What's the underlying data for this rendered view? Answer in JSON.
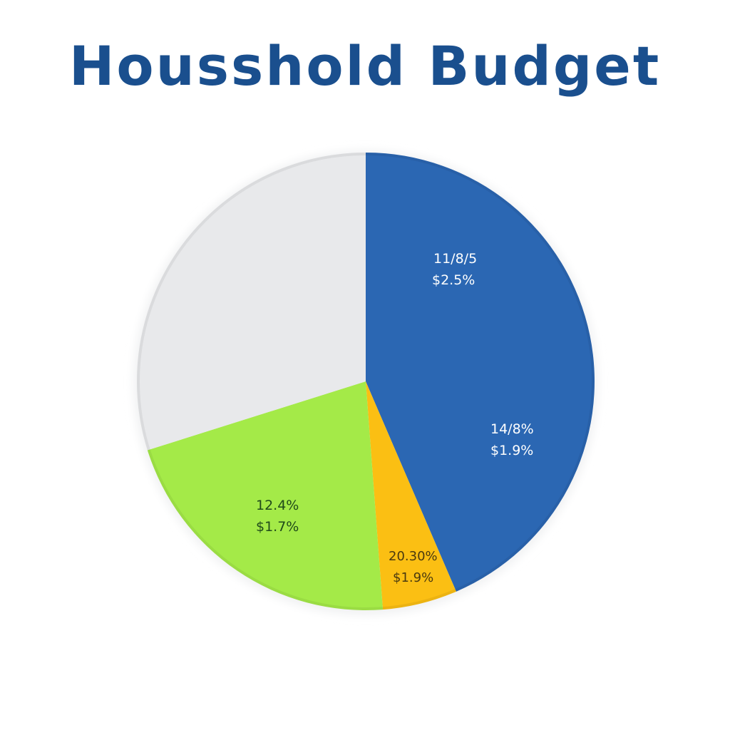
{
  "title": "Housshold Budget",
  "colors": {
    "title": "#1a4f8e",
    "blue": "#2b67b3",
    "yellow": "#fbbf13",
    "green": "#a4ea48",
    "gray": "#e8e9eb"
  },
  "chart_data": {
    "type": "pie",
    "title": "Housshold Budget",
    "categories": [
      "Blue slice",
      "Yellow slice",
      "Green slice",
      "Gray slice"
    ],
    "values": [
      43.5,
      5.3,
      21.4,
      29.8
    ],
    "slices": [
      {
        "color": "#2b67b3",
        "start_deg": 0,
        "end_deg": 156.7,
        "labels": [
          [
            "11/8/5",
            "$2.5%"
          ],
          [
            "14/8%",
            "$1.9%"
          ]
        ]
      },
      {
        "color": "#fbbf13",
        "start_deg": 156.7,
        "end_deg": 175.7,
        "labels": [
          [
            "20.30%",
            "$1.9%"
          ]
        ]
      },
      {
        "color": "#a4ea48",
        "start_deg": 175.7,
        "end_deg": 252.5,
        "labels": [
          [
            "12.4%",
            "$1.7%"
          ]
        ]
      },
      {
        "color": "#e8e9eb",
        "start_deg": 252.5,
        "end_deg": 360,
        "labels": []
      }
    ],
    "legend": "none"
  },
  "labels": {
    "blue_top": {
      "line1": "11/8/5",
      "line2": "$2.5%"
    },
    "blue_bottom": {
      "line1": "14/8%",
      "line2": "$1.9%"
    },
    "green": {
      "line1": "12.4%",
      "line2": "$1.7%"
    },
    "yellow": {
      "line1": "20.30%",
      "line2": "$1.9%"
    }
  }
}
